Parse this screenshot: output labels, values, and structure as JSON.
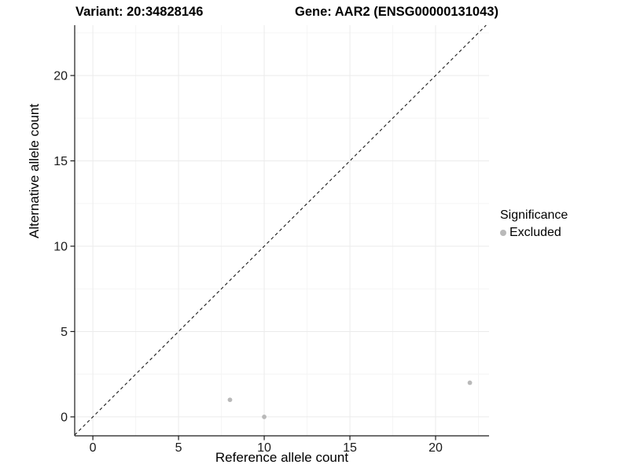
{
  "header": {
    "variant_title": "Variant: 20:34828146",
    "gene_title": "Gene: AAR2 (ENSG00000131043)"
  },
  "chart_data": {
    "type": "scatter",
    "xlabel": "Reference allele count",
    "ylabel": "Alternative allele count",
    "xlim": [
      -1.06,
      23.12
    ],
    "ylim": [
      -1.11,
      22.95
    ],
    "x_ticks": [
      0,
      5,
      10,
      15,
      20
    ],
    "y_ticks": [
      0,
      5,
      10,
      15,
      20
    ],
    "x_minor_ticks": [
      2.5,
      7.5,
      12.5,
      17.5,
      22.5
    ],
    "y_minor_ticks": [
      2.5,
      7.5,
      12.5,
      17.5,
      22.5
    ],
    "grid": true,
    "reference_line": {
      "kind": "identity",
      "style": "dashed"
    },
    "series": [
      {
        "name": "Excluded",
        "color": "#b9b9b9",
        "points": [
          {
            "x": 8,
            "y": 1
          },
          {
            "x": 10,
            "y": 0
          },
          {
            "x": 22,
            "y": 2
          }
        ]
      }
    ],
    "legend": {
      "title": "Significance",
      "position": "right",
      "entries": [
        {
          "label": "Excluded",
          "color": "#b9b9b9"
        }
      ]
    }
  },
  "colors": {
    "axis_line": "#1a1a1a",
    "tick_label": "#1a1a1a",
    "grid_major": "#ebebeb",
    "grid_minor": "#f5f5f5",
    "reference_line": "#1a1a1a",
    "background": "#ffffff"
  }
}
